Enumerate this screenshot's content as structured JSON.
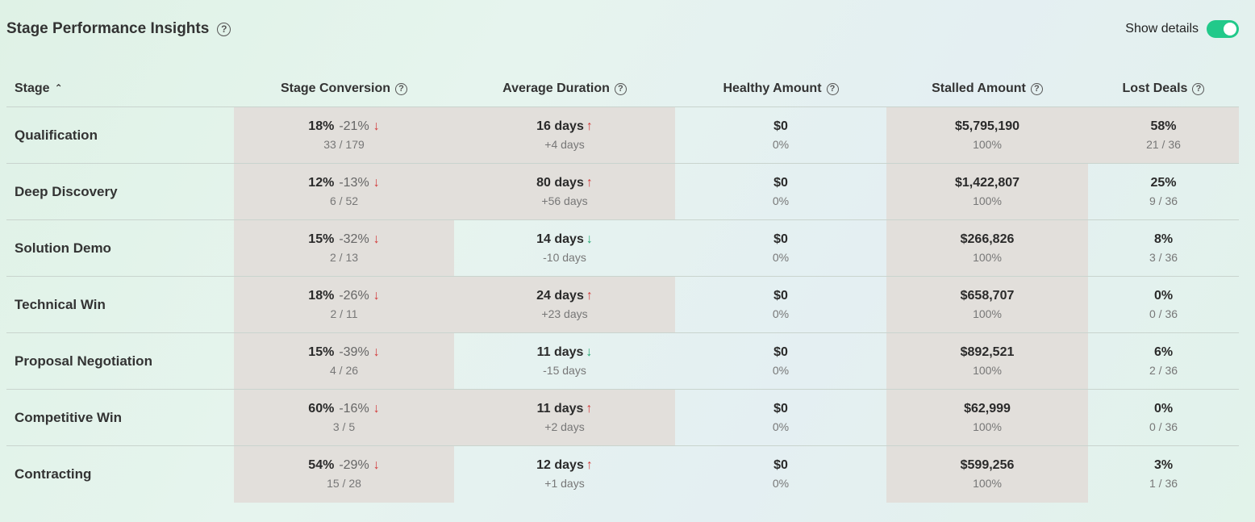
{
  "header": {
    "title": "Stage Performance Insights",
    "toggle_label": "Show details",
    "toggle_on": true
  },
  "colors": {
    "highlight": "#e2dfdb",
    "toggle": "#22c98a",
    "trend_bad": "#d23a3a",
    "trend_good": "#22a870"
  },
  "columns": [
    {
      "label": "Stage",
      "sort": "ascending"
    },
    {
      "label": "Stage Conversion"
    },
    {
      "label": "Average Duration"
    },
    {
      "label": "Healthy Amount"
    },
    {
      "label": "Stalled Amount"
    },
    {
      "label": "Lost Deals"
    }
  ],
  "rows": [
    {
      "stage": "Qualification",
      "conversion": {
        "pct": "18%",
        "delta": "-21%",
        "trend": "down-red",
        "ratio": "33 / 179",
        "highlight": true
      },
      "duration": {
        "value": "16 days",
        "trend": "up",
        "change": "+4 days",
        "highlight": true
      },
      "healthy": {
        "value": "$0",
        "pct": "0%",
        "highlight": false
      },
      "stalled": {
        "value": "$5,795,190",
        "pct": "100%",
        "highlight": true
      },
      "lost": {
        "pct": "58%",
        "ratio": "21 / 36",
        "highlight": true
      }
    },
    {
      "stage": "Deep Discovery",
      "conversion": {
        "pct": "12%",
        "delta": "-13%",
        "trend": "down-red",
        "ratio": "6 / 52",
        "highlight": true
      },
      "duration": {
        "value": "80 days",
        "trend": "up",
        "change": "+56 days",
        "highlight": true
      },
      "healthy": {
        "value": "$0",
        "pct": "0%",
        "highlight": false
      },
      "stalled": {
        "value": "$1,422,807",
        "pct": "100%",
        "highlight": true
      },
      "lost": {
        "pct": "25%",
        "ratio": "9 / 36",
        "highlight": false
      }
    },
    {
      "stage": "Solution Demo",
      "conversion": {
        "pct": "15%",
        "delta": "-32%",
        "trend": "down-red",
        "ratio": "2 / 13",
        "highlight": true
      },
      "duration": {
        "value": "14 days",
        "trend": "down-green",
        "change": "-10 days",
        "highlight": false
      },
      "healthy": {
        "value": "$0",
        "pct": "0%",
        "highlight": false
      },
      "stalled": {
        "value": "$266,826",
        "pct": "100%",
        "highlight": true
      },
      "lost": {
        "pct": "8%",
        "ratio": "3 / 36",
        "highlight": false
      }
    },
    {
      "stage": "Technical Win",
      "conversion": {
        "pct": "18%",
        "delta": "-26%",
        "trend": "down-red",
        "ratio": "2 / 11",
        "highlight": true
      },
      "duration": {
        "value": "24 days",
        "trend": "up",
        "change": "+23 days",
        "highlight": true
      },
      "healthy": {
        "value": "$0",
        "pct": "0%",
        "highlight": false
      },
      "stalled": {
        "value": "$658,707",
        "pct": "100%",
        "highlight": true
      },
      "lost": {
        "pct": "0%",
        "ratio": "0 / 36",
        "highlight": false
      }
    },
    {
      "stage": "Proposal Negotiation",
      "conversion": {
        "pct": "15%",
        "delta": "-39%",
        "trend": "down-red",
        "ratio": "4 / 26",
        "highlight": true
      },
      "duration": {
        "value": "11 days",
        "trend": "down-green",
        "change": "-15 days",
        "highlight": false
      },
      "healthy": {
        "value": "$0",
        "pct": "0%",
        "highlight": false
      },
      "stalled": {
        "value": "$892,521",
        "pct": "100%",
        "highlight": true
      },
      "lost": {
        "pct": "6%",
        "ratio": "2 / 36",
        "highlight": false
      }
    },
    {
      "stage": "Competitive Win",
      "conversion": {
        "pct": "60%",
        "delta": "-16%",
        "trend": "down-red",
        "ratio": "3 / 5",
        "highlight": true
      },
      "duration": {
        "value": "11 days",
        "trend": "up",
        "change": "+2 days",
        "highlight": true
      },
      "healthy": {
        "value": "$0",
        "pct": "0%",
        "highlight": false
      },
      "stalled": {
        "value": "$62,999",
        "pct": "100%",
        "highlight": true
      },
      "lost": {
        "pct": "0%",
        "ratio": "0 / 36",
        "highlight": false
      }
    },
    {
      "stage": "Contracting",
      "conversion": {
        "pct": "54%",
        "delta": "-29%",
        "trend": "down-red",
        "ratio": "15 / 28",
        "highlight": true
      },
      "duration": {
        "value": "12 days",
        "trend": "up",
        "change": "+1 days",
        "highlight": false
      },
      "healthy": {
        "value": "$0",
        "pct": "0%",
        "highlight": false
      },
      "stalled": {
        "value": "$599,256",
        "pct": "100%",
        "highlight": true
      },
      "lost": {
        "pct": "3%",
        "ratio": "1 / 36",
        "highlight": false
      }
    }
  ]
}
